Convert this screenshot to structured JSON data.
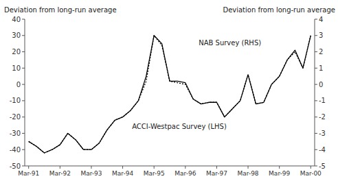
{
  "chart_data": {
    "type": "line",
    "y_label": "Deviation from long-run average",
    "y2_label": "Deviation from long-run average",
    "categories": [
      "Mar-91",
      null,
      null,
      null,
      "Mar-92",
      null,
      null,
      null,
      "Mar-93",
      null,
      null,
      null,
      "Mar-94",
      null,
      null,
      null,
      "Mar-95",
      null,
      null,
      null,
      "Mar-96",
      null,
      null,
      null,
      "Mar-97",
      null,
      null,
      null,
      "Mar-98",
      null,
      null,
      null,
      "Mar-99",
      null,
      null,
      null,
      "Mar-00"
    ],
    "series": [
      {
        "name": "ACCI-Westpac Survey (LHS)",
        "color": "#000000",
        "line_style": "dotted",
        "values": [
          -35,
          -38,
          -42,
          -40,
          -37,
          -30,
          -34,
          -40,
          -40,
          -36,
          -28,
          -22,
          -20,
          -16,
          -10,
          2,
          30,
          24,
          2,
          1,
          0,
          -9,
          -12,
          -11,
          -11,
          -20,
          -15,
          -10,
          6,
          -12,
          -11,
          0,
          5,
          15,
          20,
          10,
          30
        ]
      },
      {
        "name": "NAB Survey (RHS)",
        "color": "#000000",
        "line_style": "solid",
        "axis": "y2",
        "values": [
          -3.5,
          -3.8,
          -4.2,
          -4.0,
          -3.7,
          -3.0,
          -3.4,
          -4.0,
          -4.0,
          -3.6,
          -2.8,
          -2.2,
          -2.0,
          -1.6,
          -1.0,
          0.5,
          3.0,
          2.5,
          0.2,
          0.2,
          0.1,
          -0.9,
          -1.2,
          -1.1,
          -1.1,
          -2.0,
          -1.5,
          -1.0,
          0.6,
          -1.2,
          -1.1,
          0.0,
          0.5,
          1.5,
          2.1,
          1.0,
          3.0
        ]
      }
    ],
    "ylim": [
      -50,
      40
    ],
    "yticks": [
      -50,
      -40,
      -30,
      -20,
      -10,
      0,
      10,
      20,
      30,
      40
    ],
    "y2lim": [
      -5,
      4
    ],
    "y2ticks": [
      -5,
      -4,
      -3,
      -2,
      -1,
      0,
      1,
      2,
      3,
      4
    ],
    "grid": false
  }
}
